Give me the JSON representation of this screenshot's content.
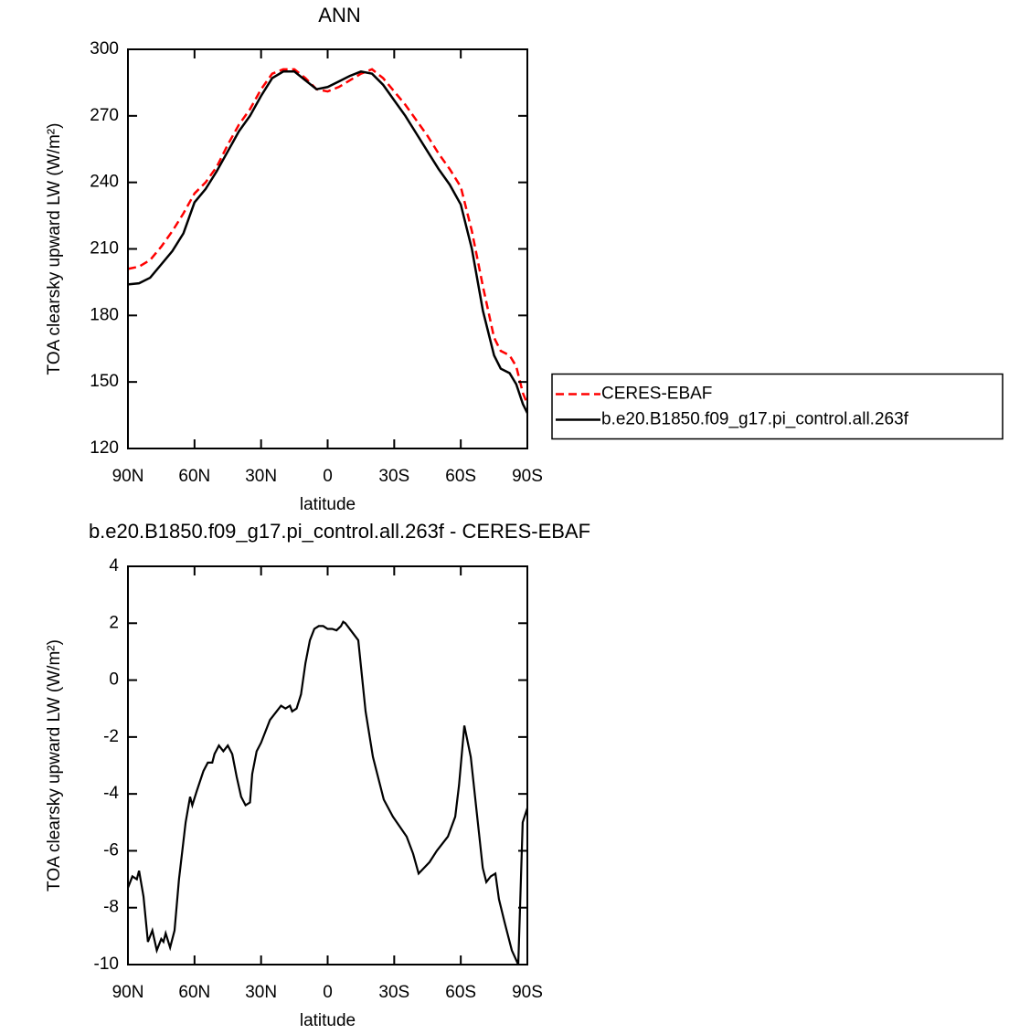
{
  "chart_data": [
    {
      "type": "line",
      "title": "ANN",
      "xlabel": "latitude",
      "ylabel": "TOA clearsky upward LW (W/m²)",
      "xlim": [
        90,
        -90
      ],
      "xticks": [
        {
          "value": 90,
          "label": "90N"
        },
        {
          "value": 60,
          "label": "60N"
        },
        {
          "value": 30,
          "label": "30N"
        },
        0,
        {
          "value": -30,
          "label": "30S"
        },
        {
          "value": -60,
          "label": "60S"
        },
        {
          "value": -90,
          "label": "90S"
        }
      ],
      "ylim": [
        120,
        300
      ],
      "yticks": [
        120,
        150,
        180,
        210,
        240,
        270,
        300
      ],
      "legend": "right",
      "x": [
        90,
        85,
        80,
        75,
        70,
        65,
        60,
        55,
        50,
        45,
        40,
        35,
        30,
        25,
        20,
        15,
        10,
        5,
        0,
        -5,
        -10,
        -15,
        -20,
        -25,
        -30,
        -35,
        -40,
        -45,
        -50,
        -55,
        -60,
        -62,
        -65,
        -70,
        -75,
        -78,
        -82,
        -85,
        -88,
        -90
      ],
      "series": [
        {
          "name": "CERES-EBAF",
          "color": "#ff0000",
          "dash": "dashed",
          "values": [
            201,
            202,
            205,
            211,
            218,
            226,
            235,
            240,
            247,
            257,
            266,
            273,
            282,
            289,
            291,
            291,
            287,
            282,
            281,
            283,
            286,
            289,
            291,
            287,
            281,
            275,
            268,
            261,
            253,
            246,
            238,
            230,
            218,
            193,
            170,
            164,
            162,
            157,
            145,
            140
          ]
        },
        {
          "name": "b.e20.B1850.f09_g17.pi_control.all.263f",
          "color": "#000000",
          "dash": "solid",
          "values": [
            194,
            194.5,
            197,
            203,
            209,
            217,
            231,
            237,
            245,
            254,
            263,
            270,
            279,
            287,
            290,
            290,
            286,
            282,
            283,
            285.5,
            288,
            290,
            289,
            284,
            277,
            270,
            262,
            254,
            246,
            239,
            230,
            222,
            210,
            182,
            162,
            156,
            154,
            149,
            140,
            136
          ]
        }
      ]
    },
    {
      "type": "line",
      "title": "b.e20.B1850.f09_g17.pi_control.all.263f - CERES-EBAF",
      "xlabel": "latitude",
      "ylabel": "TOA clearsky upward LW (W/m²)",
      "xlim": [
        90,
        -90
      ],
      "xticks": [
        {
          "value": 90,
          "label": "90N"
        },
        {
          "value": 60,
          "label": "60N"
        },
        {
          "value": 30,
          "label": "30N"
        },
        0,
        {
          "value": -30,
          "label": "30S"
        },
        {
          "value": -60,
          "label": "60S"
        },
        {
          "value": -90,
          "label": "90S"
        }
      ],
      "ylim": [
        -10,
        4
      ],
      "yticks": [
        -10,
        -8,
        -6,
        -4,
        -2,
        0,
        2,
        4
      ],
      "color": "#000000",
      "x": [
        90,
        88,
        86,
        85,
        83,
        81,
        79,
        77,
        75,
        74,
        73,
        71,
        69,
        67,
        64,
        62,
        61,
        59,
        56,
        54,
        52,
        51,
        49,
        47,
        45,
        43,
        41,
        39,
        37,
        35,
        34,
        32,
        30,
        28,
        26,
        23,
        21,
        19,
        17,
        16,
        14,
        12,
        10,
        8,
        6,
        4,
        2,
        0,
        -2,
        -4,
        -6,
        -7,
        -8,
        -13.8,
        -17.1,
        -20.4,
        -25.3,
        -29.4,
        -35.6,
        -38.5,
        -41,
        -45.9,
        -49.2,
        -54.2,
        -57.5,
        -59.2,
        -61.6,
        -64.5,
        -67.4,
        -69.9,
        -71.5,
        -73.5,
        -75.6,
        -77.2,
        -79.7,
        -83,
        -85.9,
        -87.9,
        -90
      ],
      "values": [
        -7.3,
        -6.9,
        -7.0,
        -6.7,
        -7.6,
        -9.2,
        -8.8,
        -9.5,
        -9.1,
        -9.2,
        -8.9,
        -9.4,
        -8.8,
        -7.0,
        -5.0,
        -4.1,
        -4.4,
        -3.9,
        -3.2,
        -2.9,
        -2.9,
        -2.6,
        -2.3,
        -2.5,
        -2.3,
        -2.6,
        -3.4,
        -4.1,
        -4.4,
        -4.3,
        -3.3,
        -2.5,
        -2.2,
        -1.8,
        -1.4,
        -1.1,
        -0.9,
        -1.0,
        -0.9,
        -1.1,
        -1.0,
        -0.5,
        0.6,
        1.4,
        1.8,
        1.9,
        1.9,
        1.8,
        1.8,
        1.75,
        1.9,
        2.05,
        2.0,
        1.4,
        -1.1,
        -2.7,
        -4.2,
        -4.8,
        -5.5,
        -6.1,
        -6.8,
        -6.4,
        -6.0,
        -5.5,
        -4.8,
        -3.7,
        -1.6,
        -2.7,
        -4.8,
        -6.6,
        -7.1,
        -6.9,
        -6.8,
        -7.7,
        -8.5,
        -9.5,
        -10,
        -5.0,
        -4.5
      ]
    }
  ]
}
